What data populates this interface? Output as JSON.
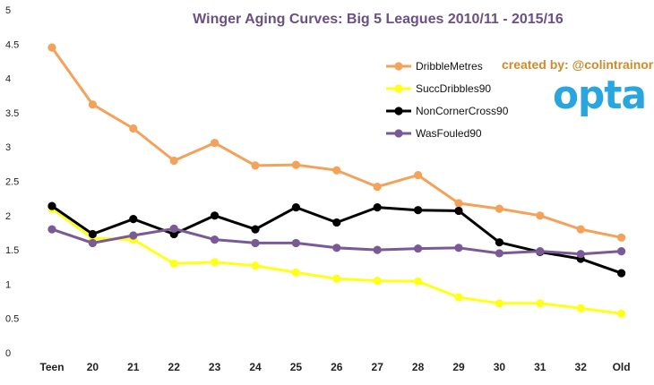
{
  "chart_data": {
    "type": "line",
    "title": "Winger Aging Curves: Big 5 Leagues 2010/11 - 2015/16",
    "xlabel": "",
    "ylabel": "",
    "categories": [
      "Teen",
      "20",
      "21",
      "22",
      "23",
      "24",
      "25",
      "26",
      "27",
      "28",
      "29",
      "30",
      "31",
      "32",
      "Old"
    ],
    "ylim": [
      0,
      5
    ],
    "yticks": [
      "0",
      "0.5",
      "1",
      "1.5",
      "2",
      "2.5",
      "3",
      "3.5",
      "4",
      "4.5",
      "5"
    ],
    "grid": false,
    "legend": "top-right",
    "series": [
      {
        "name": "DribbleMetres",
        "color": "#f4a259",
        "values": [
          4.45,
          3.62,
          3.27,
          2.8,
          3.06,
          2.73,
          2.74,
          2.66,
          2.42,
          2.59,
          2.18,
          2.1,
          2.0,
          1.8,
          1.68
        ]
      },
      {
        "name": "SuccDribbles90",
        "color": "#ffff1a",
        "values": [
          2.1,
          1.67,
          1.65,
          1.3,
          1.32,
          1.27,
          1.17,
          1.08,
          1.05,
          1.04,
          0.81,
          0.72,
          0.72,
          0.65,
          0.57
        ]
      },
      {
        "name": "NonCornerCross90",
        "color": "#000000",
        "values": [
          2.14,
          1.73,
          1.95,
          1.73,
          2.0,
          1.8,
          2.12,
          1.9,
          2.12,
          2.08,
          2.07,
          1.61,
          1.47,
          1.37,
          1.16
        ]
      },
      {
        "name": "WasFouled90",
        "color": "#7a5a96",
        "values": [
          1.8,
          1.6,
          1.71,
          1.81,
          1.65,
          1.6,
          1.6,
          1.53,
          1.5,
          1.52,
          1.53,
          1.45,
          1.48,
          1.44,
          1.48
        ]
      }
    ]
  },
  "credit": "created by: @colintrainor",
  "logo_text": "opta",
  "colors": {
    "title": "#6b4f86",
    "credit": "#d08a2a",
    "logo": "#29a5df"
  }
}
